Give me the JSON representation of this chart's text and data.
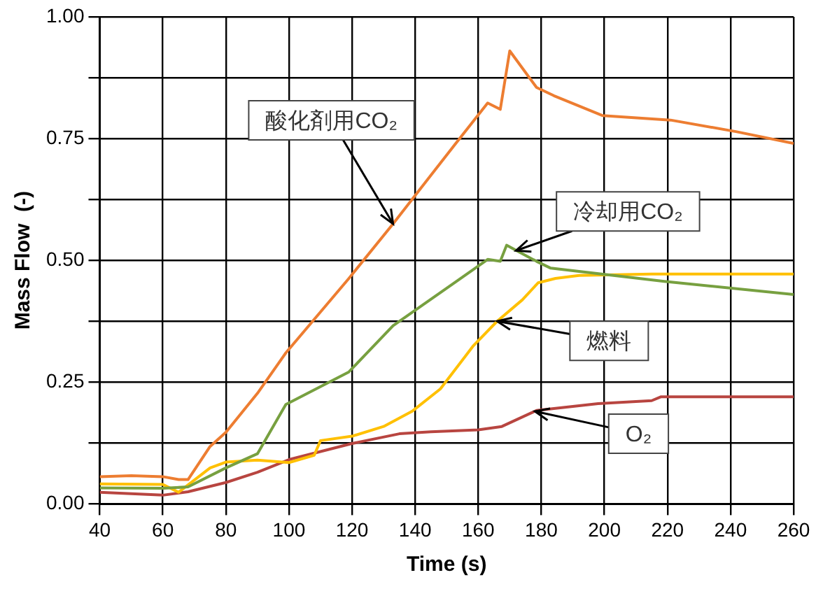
{
  "chart_data": {
    "type": "line",
    "xlabel": "Time (s)",
    "ylabel": "Mass Flow  (-)",
    "xlim": [
      40,
      260
    ],
    "xticks": [
      40,
      60,
      80,
      100,
      120,
      140,
      160,
      180,
      200,
      220,
      240,
      260
    ],
    "ylim": [
      0,
      1
    ],
    "yticks": [
      {
        "value": 0,
        "label": "0.00"
      },
      {
        "value": 0.125,
        "label": null
      },
      {
        "value": 0.25,
        "label": "0.25"
      },
      {
        "value": 0.375,
        "label": null
      },
      {
        "value": 0.5,
        "label": "0.50"
      },
      {
        "value": 0.625,
        "label": null
      },
      {
        "value": 0.75,
        "label": "0.75"
      },
      {
        "value": 0.875,
        "label": null
      },
      {
        "value": 1,
        "label": "1.00"
      }
    ],
    "grid": true,
    "legend": false,
    "marker": "none",
    "line_style": "solid",
    "series": [
      {
        "color": "#ed7d31",
        "x": [
          40,
          50,
          60,
          65,
          68,
          75,
          80,
          90,
          99,
          119,
          133,
          152.5,
          163,
          167,
          170,
          178.5,
          184,
          199.5,
          221,
          242,
          260
        ],
        "values": [
          0.056,
          0.058,
          0.056,
          0.05,
          0.05,
          0.118,
          0.147,
          0.227,
          0.31,
          0.463,
          0.575,
          0.737,
          0.823,
          0.81,
          0.93,
          0.855,
          0.838,
          0.797,
          0.788,
          0.764,
          0.74
        ]
      },
      {
        "color": "#77a040",
        "x": [
          40,
          60,
          68,
          80,
          90,
          99,
          119,
          133,
          152.5,
          163,
          167,
          169,
          178.5,
          183,
          219,
          260
        ],
        "values": [
          0.033,
          0.032,
          0.035,
          0.074,
          0.103,
          0.204,
          0.271,
          0.366,
          0.454,
          0.502,
          0.498,
          0.531,
          0.498,
          0.484,
          0.457,
          0.43
        ]
      },
      {
        "color": "#ffc000",
        "x": [
          40,
          60,
          65,
          75,
          80,
          90,
          100,
          108,
          110,
          120,
          130,
          139,
          148,
          158.5,
          166,
          174,
          179,
          184.5,
          192,
          215,
          260
        ],
        "values": [
          0.041,
          0.04,
          0.024,
          0.074,
          0.086,
          0.09,
          0.085,
          0.1,
          0.13,
          0.139,
          0.159,
          0.19,
          0.236,
          0.325,
          0.375,
          0.419,
          0.454,
          0.463,
          0.469,
          0.472,
          0.472
        ]
      },
      {
        "color": "#b84540",
        "x": [
          40,
          60,
          68,
          80,
          90,
          100,
          120,
          135,
          145,
          160,
          167.5,
          178.5,
          198,
          215,
          218,
          260
        ],
        "values": [
          0.024,
          0.018,
          0.025,
          0.044,
          0.065,
          0.091,
          0.124,
          0.144,
          0.148,
          0.152,
          0.159,
          0.192,
          0.206,
          0.212,
          0.22,
          0.22
        ]
      }
    ],
    "annotations": [
      {
        "text": "酸化剤用CO₂",
        "x": 133,
        "y": 0.575
      },
      {
        "text": "冷却用CO₂",
        "x": 172,
        "y": 0.52
      },
      {
        "text": "燃料",
        "x": 166,
        "y": 0.375
      },
      {
        "text": "O₂",
        "x": 178,
        "y": 0.19
      }
    ]
  }
}
